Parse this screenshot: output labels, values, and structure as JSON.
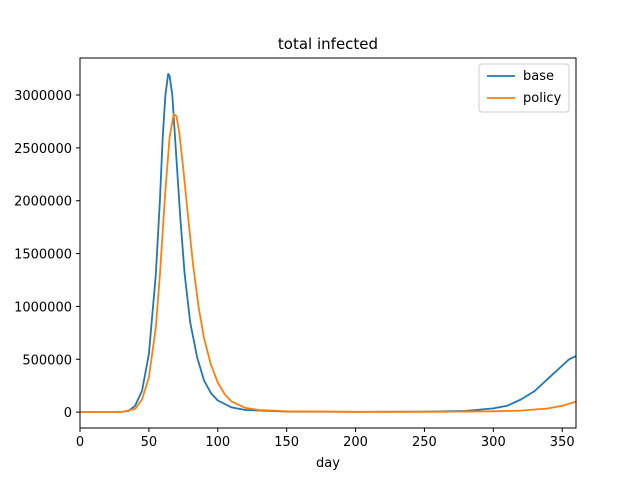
{
  "chart_data": {
    "type": "line",
    "title": "total infected",
    "xlabel": "day",
    "ylabel": "",
    "xlim": [
      0,
      360
    ],
    "ylim": [
      -150000,
      3350000
    ],
    "xticks": [
      0,
      50,
      100,
      150,
      200,
      250,
      300,
      350
    ],
    "yticks": [
      0,
      500000,
      1000000,
      1500000,
      2000000,
      2500000,
      3000000
    ],
    "ytick_labels": [
      "0",
      "500000",
      "1000000",
      "1500000",
      "2000000",
      "2500000",
      "3000000"
    ],
    "grid": false,
    "legend_position": "top-right",
    "series": [
      {
        "name": "base",
        "color": "#1f77b4",
        "points": [
          [
            0,
            0
          ],
          [
            20,
            0
          ],
          [
            30,
            2000
          ],
          [
            35,
            10000
          ],
          [
            40,
            60000
          ],
          [
            45,
            200000
          ],
          [
            50,
            550000
          ],
          [
            55,
            1300000
          ],
          [
            58,
            2000000
          ],
          [
            60,
            2600000
          ],
          [
            62,
            3000000
          ],
          [
            64,
            3200000
          ],
          [
            65,
            3180000
          ],
          [
            67,
            3000000
          ],
          [
            70,
            2400000
          ],
          [
            73,
            1800000
          ],
          [
            76,
            1300000
          ],
          [
            80,
            850000
          ],
          [
            85,
            520000
          ],
          [
            90,
            300000
          ],
          [
            95,
            180000
          ],
          [
            100,
            110000
          ],
          [
            110,
            45000
          ],
          [
            120,
            20000
          ],
          [
            150,
            5000
          ],
          [
            200,
            2000
          ],
          [
            250,
            5000
          ],
          [
            280,
            12000
          ],
          [
            300,
            35000
          ],
          [
            310,
            60000
          ],
          [
            320,
            120000
          ],
          [
            330,
            200000
          ],
          [
            340,
            320000
          ],
          [
            350,
            440000
          ],
          [
            355,
            500000
          ],
          [
            360,
            530000
          ]
        ]
      },
      {
        "name": "policy",
        "color": "#ff7f0e",
        "points": [
          [
            0,
            0
          ],
          [
            20,
            0
          ],
          [
            30,
            1500
          ],
          [
            40,
            30000
          ],
          [
            45,
            120000
          ],
          [
            50,
            330000
          ],
          [
            55,
            800000
          ],
          [
            58,
            1300000
          ],
          [
            62,
            2100000
          ],
          [
            65,
            2600000
          ],
          [
            68,
            2820000
          ],
          [
            70,
            2800000
          ],
          [
            72,
            2650000
          ],
          [
            75,
            2300000
          ],
          [
            78,
            1900000
          ],
          [
            82,
            1400000
          ],
          [
            86,
            1000000
          ],
          [
            90,
            700000
          ],
          [
            95,
            450000
          ],
          [
            100,
            280000
          ],
          [
            105,
            170000
          ],
          [
            110,
            100000
          ],
          [
            120,
            40000
          ],
          [
            130,
            20000
          ],
          [
            150,
            8000
          ],
          [
            200,
            3000
          ],
          [
            250,
            3000
          ],
          [
            300,
            8000
          ],
          [
            320,
            15000
          ],
          [
            340,
            35000
          ],
          [
            350,
            60000
          ],
          [
            360,
            100000
          ]
        ]
      }
    ]
  }
}
